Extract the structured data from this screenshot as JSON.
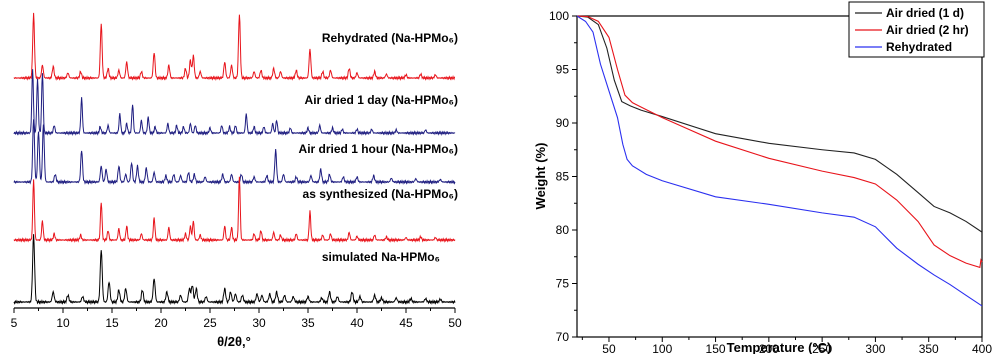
{
  "chart_data": [
    {
      "type": "line",
      "xlabel": "θ/2θ,°",
      "xlim": [
        5,
        50
      ],
      "xticks": [
        5,
        10,
        15,
        20,
        25,
        30,
        35,
        40,
        45,
        50
      ],
      "traces": [
        {
          "label": "Rehydrated (Na-HPMo₆)",
          "color": "#e8141b",
          "peaks": [
            [
              7.0,
              1.0
            ],
            [
              7.9,
              0.2
            ],
            [
              9.0,
              0.18
            ],
            [
              10.5,
              0.08
            ],
            [
              11.8,
              0.1
            ],
            [
              13.9,
              0.85
            ],
            [
              14.6,
              0.15
            ],
            [
              15.7,
              0.12
            ],
            [
              16.5,
              0.25
            ],
            [
              18.0,
              0.1
            ],
            [
              19.3,
              0.4
            ],
            [
              20.8,
              0.2
            ],
            [
              22.5,
              0.15
            ],
            [
              23.0,
              0.28
            ],
            [
              23.3,
              0.35
            ],
            [
              24.0,
              0.1
            ],
            [
              26.5,
              0.25
            ],
            [
              27.2,
              0.2
            ],
            [
              28.0,
              1.0
            ],
            [
              29.5,
              0.1
            ],
            [
              30.2,
              0.12
            ],
            [
              31.5,
              0.15
            ],
            [
              32.2,
              0.1
            ],
            [
              33.8,
              0.12
            ],
            [
              35.2,
              0.45
            ],
            [
              36.5,
              0.1
            ],
            [
              37.3,
              0.12
            ],
            [
              39.2,
              0.15
            ],
            [
              40.0,
              0.08
            ],
            [
              41.8,
              0.1
            ],
            [
              43.0,
              0.06
            ],
            [
              45.0,
              0.05
            ],
            [
              46.5,
              0.06
            ],
            [
              48.0,
              0.05
            ]
          ]
        },
        {
          "label": "Air dried 1 day (Na-HPMo₆)",
          "color": "#1e1d80",
          "peaks": [
            [
              6.9,
              1.0
            ],
            [
              7.4,
              0.85
            ],
            [
              7.9,
              0.95
            ],
            [
              9.1,
              0.12
            ],
            [
              11.9,
              0.55
            ],
            [
              13.8,
              0.1
            ],
            [
              14.6,
              0.12
            ],
            [
              15.8,
              0.3
            ],
            [
              16.5,
              0.15
            ],
            [
              17.1,
              0.45
            ],
            [
              18.0,
              0.2
            ],
            [
              18.7,
              0.25
            ],
            [
              19.4,
              0.1
            ],
            [
              20.7,
              0.15
            ],
            [
              21.6,
              0.12
            ],
            [
              22.3,
              0.1
            ],
            [
              23.0,
              0.15
            ],
            [
              23.5,
              0.12
            ],
            [
              25.0,
              0.08
            ],
            [
              26.2,
              0.12
            ],
            [
              27.0,
              0.1
            ],
            [
              27.6,
              0.12
            ],
            [
              28.7,
              0.3
            ],
            [
              29.5,
              0.1
            ],
            [
              30.5,
              0.1
            ],
            [
              31.4,
              0.15
            ],
            [
              31.8,
              0.2
            ],
            [
              33.2,
              0.08
            ],
            [
              35.0,
              0.08
            ],
            [
              36.2,
              0.12
            ],
            [
              37.5,
              0.08
            ],
            [
              38.5,
              0.06
            ],
            [
              40.0,
              0.06
            ],
            [
              41.5,
              0.06
            ],
            [
              44.0,
              0.05
            ],
            [
              47.0,
              0.05
            ]
          ]
        },
        {
          "label": "Air dried 1 hour (Na-HPMo₆)",
          "color": "#1e1d80",
          "peaks": [
            [
              7.0,
              1.0
            ],
            [
              7.5,
              0.8
            ],
            [
              8.0,
              0.9
            ],
            [
              9.2,
              0.12
            ],
            [
              11.9,
              0.5
            ],
            [
              13.9,
              0.25
            ],
            [
              14.4,
              0.2
            ],
            [
              15.7,
              0.25
            ],
            [
              16.4,
              0.12
            ],
            [
              17.0,
              0.3
            ],
            [
              17.6,
              0.25
            ],
            [
              18.5,
              0.22
            ],
            [
              19.3,
              0.15
            ],
            [
              20.5,
              0.1
            ],
            [
              21.3,
              0.12
            ],
            [
              22.0,
              0.1
            ],
            [
              22.8,
              0.15
            ],
            [
              23.4,
              0.12
            ],
            [
              24.5,
              0.08
            ],
            [
              26.3,
              0.12
            ],
            [
              27.2,
              0.12
            ],
            [
              28.2,
              0.12
            ],
            [
              29.5,
              0.08
            ],
            [
              30.8,
              0.1
            ],
            [
              31.7,
              0.5
            ],
            [
              32.5,
              0.12
            ],
            [
              33.8,
              0.08
            ],
            [
              35.3,
              0.1
            ],
            [
              36.3,
              0.2
            ],
            [
              37.2,
              0.12
            ],
            [
              38.6,
              0.08
            ],
            [
              40.0,
              0.08
            ],
            [
              41.7,
              0.1
            ],
            [
              43.5,
              0.06
            ],
            [
              46.0,
              0.05
            ],
            [
              48.5,
              0.04
            ]
          ]
        },
        {
          "label": "as synthesized (Na-HPMo₆)",
          "color": "#e8141b",
          "peaks": [
            [
              7.0,
              0.95
            ],
            [
              7.9,
              0.3
            ],
            [
              9.1,
              0.1
            ],
            [
              11.8,
              0.08
            ],
            [
              13.9,
              0.6
            ],
            [
              14.6,
              0.15
            ],
            [
              15.7,
              0.18
            ],
            [
              16.5,
              0.22
            ],
            [
              18.0,
              0.1
            ],
            [
              19.3,
              0.35
            ],
            [
              20.8,
              0.2
            ],
            [
              22.5,
              0.1
            ],
            [
              23.0,
              0.22
            ],
            [
              23.3,
              0.3
            ],
            [
              24.0,
              0.08
            ],
            [
              26.5,
              0.22
            ],
            [
              27.2,
              0.2
            ],
            [
              28.0,
              1.0
            ],
            [
              29.5,
              0.1
            ],
            [
              30.2,
              0.15
            ],
            [
              31.5,
              0.12
            ],
            [
              32.2,
              0.08
            ],
            [
              33.8,
              0.1
            ],
            [
              35.2,
              0.45
            ],
            [
              36.5,
              0.08
            ],
            [
              37.3,
              0.1
            ],
            [
              39.2,
              0.12
            ],
            [
              40.0,
              0.06
            ],
            [
              41.8,
              0.08
            ],
            [
              43.0,
              0.05
            ],
            [
              45.0,
              0.04
            ],
            [
              46.5,
              0.05
            ],
            [
              48.0,
              0.04
            ]
          ]
        },
        {
          "label": "simulated Na-HPMo₆",
          "color": "#000000",
          "peaks": [
            [
              7.0,
              1.0
            ],
            [
              9.0,
              0.15
            ],
            [
              10.5,
              0.1
            ],
            [
              12.0,
              0.08
            ],
            [
              13.9,
              0.78
            ],
            [
              14.7,
              0.3
            ],
            [
              15.7,
              0.18
            ],
            [
              16.4,
              0.2
            ],
            [
              18.1,
              0.18
            ],
            [
              19.3,
              0.35
            ],
            [
              20.6,
              0.15
            ],
            [
              22.0,
              0.1
            ],
            [
              22.9,
              0.2
            ],
            [
              23.2,
              0.25
            ],
            [
              23.6,
              0.2
            ],
            [
              24.6,
              0.08
            ],
            [
              26.5,
              0.2
            ],
            [
              27.1,
              0.15
            ],
            [
              27.6,
              0.12
            ],
            [
              28.3,
              0.1
            ],
            [
              29.8,
              0.12
            ],
            [
              30.3,
              0.1
            ],
            [
              31.1,
              0.12
            ],
            [
              31.8,
              0.15
            ],
            [
              32.6,
              0.1
            ],
            [
              33.5,
              0.08
            ],
            [
              35.0,
              0.08
            ],
            [
              36.4,
              0.06
            ],
            [
              37.2,
              0.15
            ],
            [
              38.0,
              0.08
            ],
            [
              39.5,
              0.15
            ],
            [
              40.3,
              0.08
            ],
            [
              41.8,
              0.1
            ],
            [
              42.5,
              0.06
            ],
            [
              44.0,
              0.06
            ],
            [
              45.5,
              0.05
            ],
            [
              47.0,
              0.05
            ],
            [
              48.5,
              0.04
            ]
          ]
        }
      ]
    },
    {
      "type": "line",
      "xlabel": "Temperature (°C)",
      "ylabel": "Weight (%)",
      "xlim": [
        20,
        400
      ],
      "ylim": [
        70,
        100
      ],
      "xticks": [
        50,
        100,
        150,
        200,
        250,
        300,
        350,
        400
      ],
      "yticks": [
        70,
        75,
        80,
        85,
        90,
        95,
        100
      ],
      "legend_position": "top-right",
      "series": [
        {
          "name": "Air dried (1 d)",
          "color": "#222222",
          "points": [
            [
              20,
              100
            ],
            [
              30,
              99.9
            ],
            [
              40,
              99.2
            ],
            [
              48,
              97.0
            ],
            [
              55,
              94.0
            ],
            [
              62,
              92.0
            ],
            [
              70,
              91.6
            ],
            [
              80,
              91.2
            ],
            [
              100,
              90.6
            ],
            [
              150,
              89.0
            ],
            [
              200,
              88.1
            ],
            [
              250,
              87.5
            ],
            [
              280,
              87.2
            ],
            [
              300,
              86.6
            ],
            [
              320,
              85.2
            ],
            [
              340,
              83.5
            ],
            [
              355,
              82.2
            ],
            [
              370,
              81.6
            ],
            [
              385,
              80.8
            ],
            [
              400,
              79.8
            ]
          ]
        },
        {
          "name": "Air dried (2 hr)",
          "color": "#e8141b",
          "points": [
            [
              20,
              100
            ],
            [
              30,
              99.95
            ],
            [
              40,
              99.5
            ],
            [
              50,
              98.0
            ],
            [
              58,
              95.0
            ],
            [
              65,
              92.6
            ],
            [
              72,
              91.9
            ],
            [
              80,
              91.5
            ],
            [
              100,
              90.5
            ],
            [
              150,
              88.3
            ],
            [
              200,
              86.7
            ],
            [
              250,
              85.5
            ],
            [
              280,
              84.9
            ],
            [
              300,
              84.3
            ],
            [
              320,
              82.8
            ],
            [
              340,
              80.8
            ],
            [
              355,
              78.6
            ],
            [
              370,
              77.6
            ],
            [
              385,
              76.9
            ],
            [
              398,
              76.5
            ],
            [
              399,
              77.2
            ],
            [
              400,
              77.0
            ]
          ]
        },
        {
          "name": "Rehydrated",
          "color": "#2b30f0",
          "points": [
            [
              20,
              100
            ],
            [
              28,
              99.5
            ],
            [
              35,
              98.5
            ],
            [
              42,
              95.5
            ],
            [
              50,
              93.0
            ],
            [
              58,
              90.5
            ],
            [
              63,
              88.0
            ],
            [
              67,
              86.6
            ],
            [
              72,
              86.0
            ],
            [
              85,
              85.2
            ],
            [
              100,
              84.6
            ],
            [
              150,
              83.1
            ],
            [
              200,
              82.4
            ],
            [
              250,
              81.6
            ],
            [
              280,
              81.2
            ],
            [
              300,
              80.3
            ],
            [
              320,
              78.3
            ],
            [
              340,
              76.8
            ],
            [
              355,
              75.8
            ],
            [
              370,
              74.9
            ],
            [
              385,
              73.9
            ],
            [
              400,
              72.9
            ]
          ]
        }
      ]
    }
  ]
}
